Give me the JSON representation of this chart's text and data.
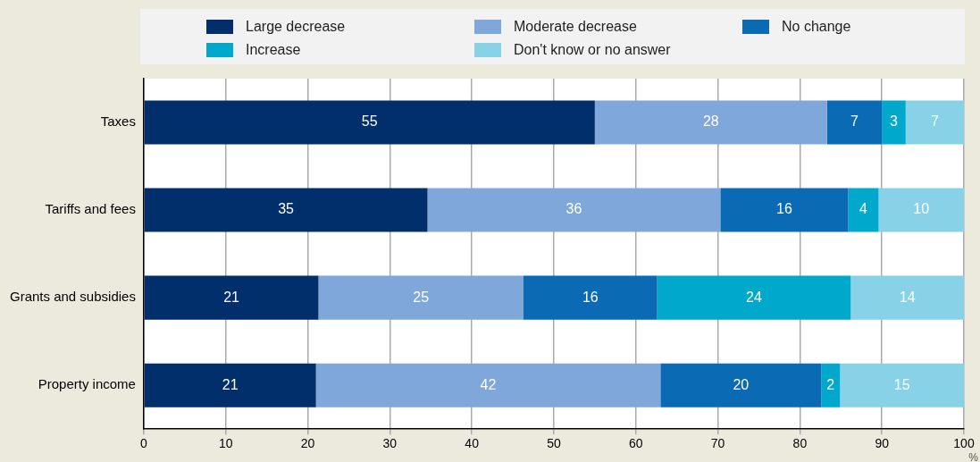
{
  "chart_data": {
    "type": "bar",
    "orientation": "horizontal",
    "stacked": true,
    "categories": [
      "Taxes",
      "Tariffs and fees",
      "Grants and subsidies",
      "Property income"
    ],
    "series": [
      {
        "name": "Large decrease",
        "color": "#002f6c",
        "values": [
          55,
          34.6,
          21.3,
          21
        ],
        "value_labels": [
          "55",
          "35",
          "21",
          "21"
        ]
      },
      {
        "name": "Moderate decrease",
        "color": "#7fa7d9",
        "values": [
          28.3,
          35.7,
          25,
          42
        ],
        "value_labels": [
          "28",
          "36",
          "25",
          "42"
        ]
      },
      {
        "name": "No change",
        "color": "#0a6ab4",
        "values": [
          6.7,
          15.6,
          16.3,
          19.6
        ],
        "value_labels": [
          "7",
          "16",
          "16",
          "20"
        ]
      },
      {
        "name": "Increase",
        "color": "#00a8cc",
        "values": [
          2.9,
          3.7,
          23.6,
          2.3
        ],
        "value_labels": [
          "3",
          "4",
          "24",
          "2"
        ]
      },
      {
        "name": "Don't know or no answer",
        "color": "#87d2e6",
        "values": [
          7.1,
          10.4,
          13.8,
          15.1
        ],
        "value_labels": [
          "7",
          "10",
          "14",
          "15"
        ]
      }
    ],
    "xlim": [
      0,
      100
    ],
    "xticks": [
      0,
      10,
      20,
      30,
      40,
      50,
      60,
      70,
      80,
      90,
      100
    ],
    "grid": "x",
    "legend": "top",
    "annotations": [
      "%"
    ]
  }
}
